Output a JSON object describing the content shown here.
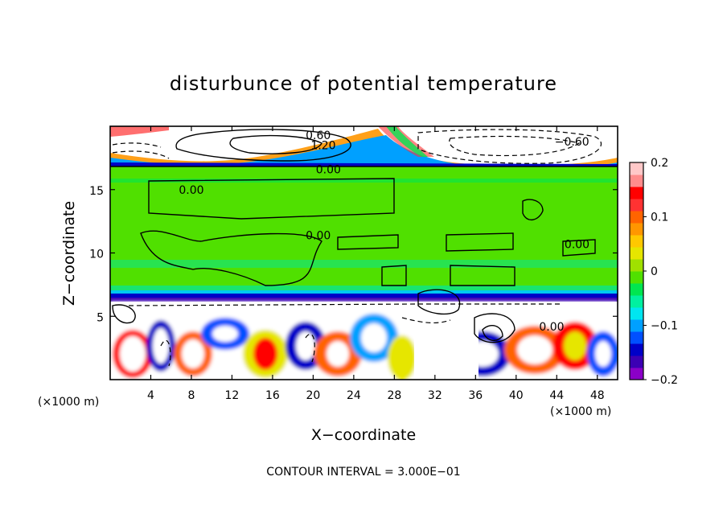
{
  "chart_data": {
    "type": "heatmap",
    "title": "disturbunce of potential temperature",
    "xlabel": "X−coordinate",
    "ylabel": "Z−coordinate",
    "x_unit_left": "(×1000 m)",
    "x_unit_right": "(×1000 m)",
    "xlim": [
      0,
      50
    ],
    "ylim": [
      0,
      20
    ],
    "x_ticks": [
      4,
      8,
      12,
      16,
      20,
      24,
      28,
      32,
      36,
      40,
      44,
      48
    ],
    "y_ticks": [
      5,
      10,
      15
    ],
    "colorbar": {
      "range": [
        -0.2,
        0.2
      ],
      "ticks": [
        {
          "value": 0.2,
          "label": "0.2"
        },
        {
          "value": 0.1,
          "label": "0.1"
        },
        {
          "value": 0.0,
          "label": "0"
        },
        {
          "value": -0.1,
          "label": "−0.1"
        },
        {
          "value": -0.2,
          "label": "−0.2"
        }
      ],
      "colors": [
        "#8b00c8",
        "#3c00b4",
        "#0000c8",
        "#0050ff",
        "#00a0ff",
        "#00e6f0",
        "#00f0a0",
        "#00e650",
        "#50e000",
        "#a0e000",
        "#e6e600",
        "#ffc800",
        "#ff9600",
        "#ff6400",
        "#ff3232",
        "#ff0000",
        "#ff8c8c",
        "#ffc8c8"
      ]
    },
    "contour_labels": [
      {
        "text": "0.60",
        "x": 20.5,
        "z": 19.3
      },
      {
        "text": "1.20",
        "x": 21.0,
        "z": 18.5
      },
      {
        "text": "−0.60",
        "x": 45.5,
        "z": 18.8
      },
      {
        "text": "0.00",
        "x": 21.5,
        "z": 16.6
      },
      {
        "text": "0.00",
        "x": 8.0,
        "z": 15.0
      },
      {
        "text": "0.00",
        "x": 20.5,
        "z": 11.4
      },
      {
        "text": "0.00",
        "x": 46.0,
        "z": 10.7
      },
      {
        "text": "0.00",
        "x": 43.5,
        "z": 4.2
      }
    ],
    "contour_interval_note": "CONTOUR INTERVAL = 3.000E−01"
  }
}
